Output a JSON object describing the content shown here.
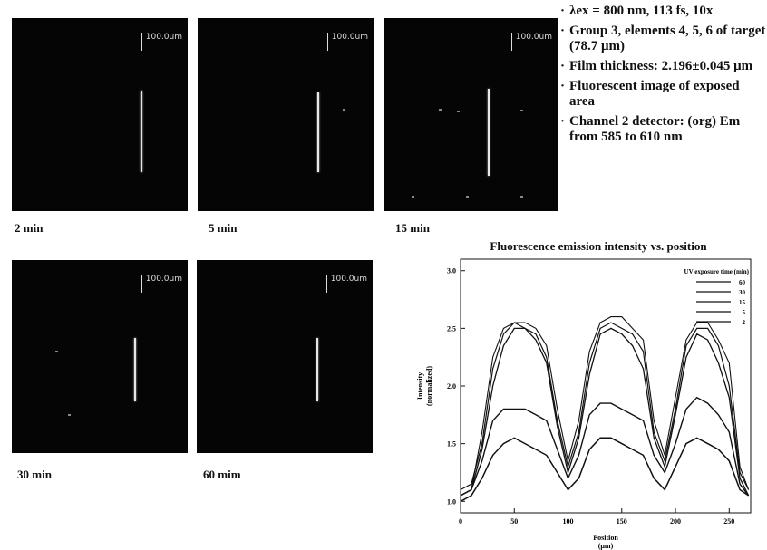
{
  "images": [
    {
      "label": "2 min",
      "scale_text": "100.0um"
    },
    {
      "label": "5 min",
      "scale_text": "100.0um"
    },
    {
      "label": "15 min",
      "scale_text": "100.0um"
    },
    {
      "label": "30 min",
      "scale_text": "100.0um"
    },
    {
      "label": "60 mim",
      "scale_text": "100.0um"
    }
  ],
  "notes": {
    "bullet": "·",
    "items": [
      "λex = 800 nm, 113 fs, 10x",
      "Group 3, elements 4, 5, 6 of target (78.7 μm)",
      "Film thickness: 2.196±0.045 μm",
      "Fluorescent image of exposed area",
      "Channel 2 detector: (org) Em from 585 to 610 nm"
    ]
  },
  "chart_data": {
    "type": "line",
    "title": "Fluorescence emission intensity vs. position",
    "xlabel": "Position",
    "xlabel_unit": "(μm)",
    "ylabel": "Intensity",
    "ylabel_unit": "(normalized)",
    "xlim": [
      0,
      270
    ],
    "ylim": [
      0.9,
      3.1
    ],
    "xticks": [
      0,
      50,
      100,
      150,
      200,
      250
    ],
    "yticks": [
      1.0,
      1.5,
      2.0,
      2.5,
      3.0
    ],
    "ytick_labels": [
      "1.0",
      "1.5",
      "2.0",
      "2.5",
      "3.0"
    ],
    "legend_title": "UV exposure time (min)",
    "legend_position": "top-right",
    "grid": false,
    "x": [
      0,
      10,
      20,
      30,
      40,
      50,
      60,
      70,
      80,
      90,
      100,
      110,
      120,
      130,
      140,
      150,
      160,
      170,
      180,
      190,
      200,
      210,
      220,
      230,
      240,
      250,
      260,
      268
    ],
    "series": [
      {
        "name": "60",
        "values": [
          1.05,
          1.1,
          1.6,
          2.25,
          2.5,
          2.55,
          2.55,
          2.5,
          2.35,
          1.8,
          1.35,
          1.7,
          2.3,
          2.55,
          2.6,
          2.6,
          2.5,
          2.4,
          1.7,
          1.4,
          1.9,
          2.4,
          2.55,
          2.55,
          2.4,
          2.2,
          1.3,
          1.1
        ]
      },
      {
        "name": "30",
        "values": [
          1.1,
          1.15,
          1.5,
          2.15,
          2.45,
          2.55,
          2.5,
          2.45,
          2.25,
          1.7,
          1.3,
          1.6,
          2.2,
          2.5,
          2.55,
          2.5,
          2.45,
          2.3,
          1.6,
          1.35,
          1.8,
          2.35,
          2.5,
          2.5,
          2.35,
          2.0,
          1.25,
          1.1
        ]
      },
      {
        "name": "15",
        "values": [
          1.05,
          1.1,
          1.45,
          2.0,
          2.35,
          2.5,
          2.5,
          2.4,
          2.2,
          1.65,
          1.25,
          1.55,
          2.1,
          2.45,
          2.5,
          2.45,
          2.35,
          2.15,
          1.55,
          1.3,
          1.75,
          2.25,
          2.45,
          2.4,
          2.2,
          1.9,
          1.2,
          1.05
        ]
      },
      {
        "name": "5",
        "values": [
          1.05,
          1.1,
          1.35,
          1.7,
          1.8,
          1.8,
          1.8,
          1.75,
          1.7,
          1.45,
          1.2,
          1.4,
          1.75,
          1.85,
          1.85,
          1.8,
          1.75,
          1.7,
          1.4,
          1.25,
          1.5,
          1.8,
          1.9,
          1.85,
          1.75,
          1.6,
          1.15,
          1.05
        ]
      },
      {
        "name": "2",
        "values": [
          1.0,
          1.05,
          1.2,
          1.4,
          1.5,
          1.55,
          1.5,
          1.45,
          1.4,
          1.25,
          1.1,
          1.2,
          1.45,
          1.55,
          1.55,
          1.5,
          1.45,
          1.4,
          1.2,
          1.1,
          1.3,
          1.5,
          1.55,
          1.5,
          1.45,
          1.35,
          1.1,
          1.05
        ]
      }
    ]
  }
}
